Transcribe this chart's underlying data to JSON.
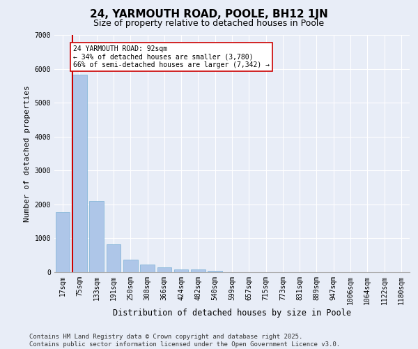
{
  "title1": "24, YARMOUTH ROAD, POOLE, BH12 1JN",
  "title2": "Size of property relative to detached houses in Poole",
  "xlabel": "Distribution of detached houses by size in Poole",
  "ylabel": "Number of detached properties",
  "categories": [
    "17sqm",
    "75sqm",
    "133sqm",
    "191sqm",
    "250sqm",
    "308sqm",
    "366sqm",
    "424sqm",
    "482sqm",
    "540sqm",
    "599sqm",
    "657sqm",
    "715sqm",
    "773sqm",
    "831sqm",
    "889sqm",
    "947sqm",
    "1006sqm",
    "1064sqm",
    "1122sqm",
    "1180sqm"
  ],
  "values": [
    1780,
    5820,
    2090,
    830,
    370,
    230,
    140,
    90,
    90,
    40,
    10,
    0,
    0,
    0,
    0,
    0,
    0,
    0,
    0,
    0,
    0
  ],
  "bar_color": "#aec6e8",
  "bar_edge_color": "#7ab0d4",
  "vline_color": "#cc0000",
  "annotation_text": "24 YARMOUTH ROAD: 92sqm\n← 34% of detached houses are smaller (3,780)\n66% of semi-detached houses are larger (7,342) →",
  "annotation_box_color": "#ffffff",
  "annotation_box_edge": "#cc0000",
  "ylim": [
    0,
    7000
  ],
  "yticks": [
    0,
    1000,
    2000,
    3000,
    4000,
    5000,
    6000,
    7000
  ],
  "bg_color": "#e8edf7",
  "footer": "Contains HM Land Registry data © Crown copyright and database right 2025.\nContains public sector information licensed under the Open Government Licence v3.0.",
  "title1_fontsize": 11,
  "title2_fontsize": 9,
  "xlabel_fontsize": 8.5,
  "ylabel_fontsize": 8,
  "tick_fontsize": 7,
  "footer_fontsize": 6.5
}
